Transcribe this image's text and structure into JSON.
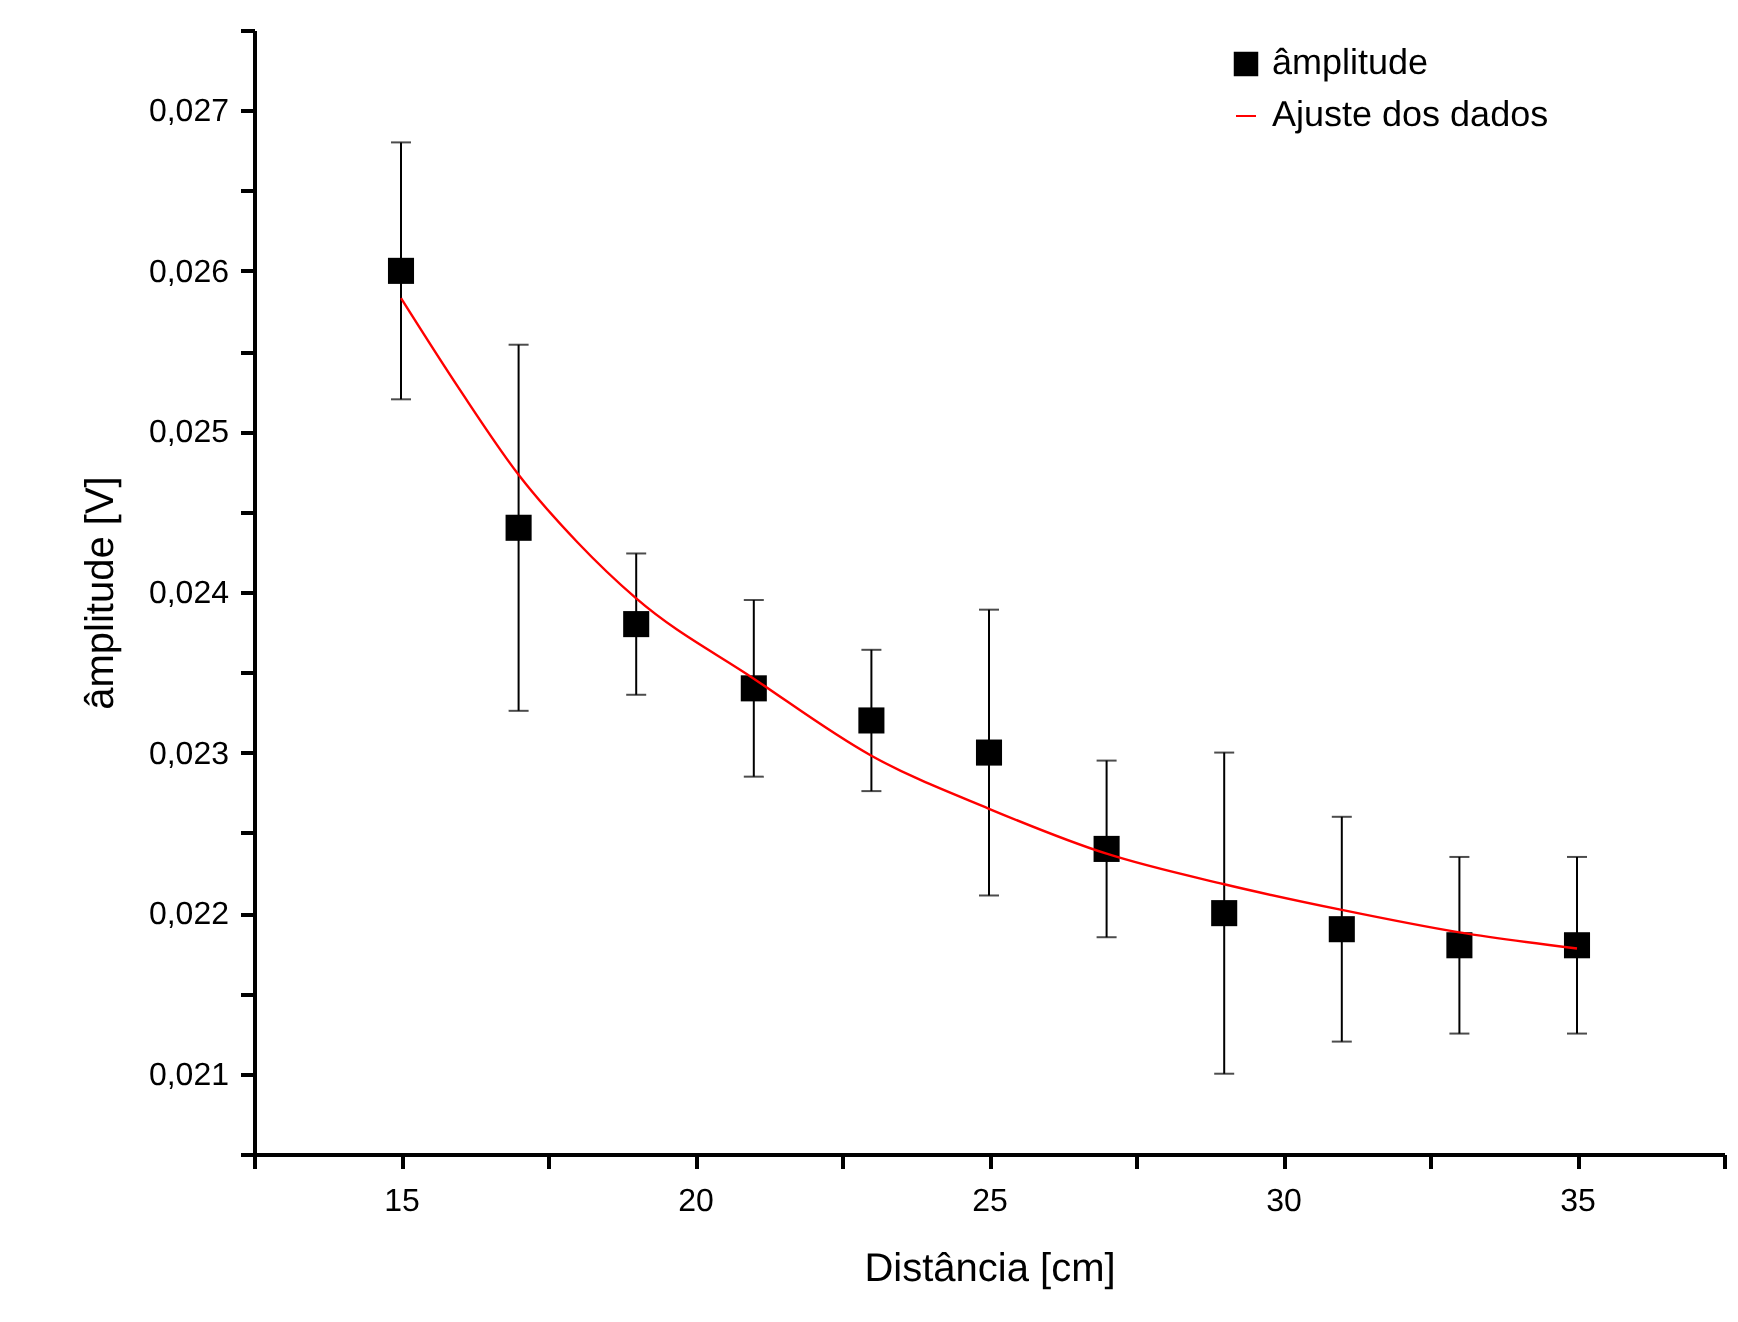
{
  "chart_data": {
    "type": "scatter",
    "xlabel": "Distância [cm]",
    "ylabel": "âmplitude [V]",
    "xlim": [
      12.5,
      37.5
    ],
    "xticks": [
      {
        "value": 12.5,
        "label": null
      },
      15,
      {
        "value": 17.5,
        "label": null
      },
      20,
      {
        "value": 22.5,
        "label": null
      },
      25,
      {
        "value": 27.5,
        "label": null
      },
      30,
      {
        "value": 32.5,
        "label": null
      },
      35,
      {
        "value": 37.5,
        "label": null
      }
    ],
    "ylim": [
      0.0205,
      0.0275
    ],
    "yticks": [
      {
        "value": 0.0205,
        "label": null
      },
      {
        "value": 0.021,
        "label": "0,021"
      },
      {
        "value": 0.0215,
        "label": null
      },
      {
        "value": 0.022,
        "label": "0,022"
      },
      {
        "value": 0.0225,
        "label": null
      },
      {
        "value": 0.023,
        "label": "0,023"
      },
      {
        "value": 0.0235,
        "label": null
      },
      {
        "value": 0.024,
        "label": "0,024"
      },
      {
        "value": 0.0245,
        "label": null
      },
      {
        "value": 0.025,
        "label": "0,025"
      },
      {
        "value": 0.0255,
        "label": null
      },
      {
        "value": 0.026,
        "label": "0,026"
      },
      {
        "value": 0.0265,
        "label": null
      },
      {
        "value": 0.027,
        "label": "0,027"
      },
      {
        "value": 0.0275,
        "label": null
      }
    ],
    "grid": false,
    "legend": "top right",
    "series": [
      {
        "name": "âmplitude",
        "marker": "square",
        "color": "#000000",
        "x": [
          15,
          17,
          19,
          21,
          23,
          25,
          27,
          29,
          31,
          33,
          35
        ],
        "values": [
          0.026,
          0.0244,
          0.0238,
          0.0234,
          0.0232,
          0.023,
          0.0224,
          0.022,
          0.0219,
          0.0218,
          0.0218
        ],
        "errors": [
          0.0008,
          0.00114,
          0.00044,
          0.00055,
          0.00044,
          0.00089,
          0.00055,
          0.001,
          0.0007,
          0.00055,
          0.00055
        ]
      },
      {
        "name": "Ajuste dos dados",
        "type": "line",
        "line_style": "solid",
        "marker": "none",
        "color": "#ff0000",
        "x": [
          15,
          16,
          17,
          18,
          19,
          21,
          23,
          25,
          27,
          29,
          31,
          33,
          35
        ],
        "values": [
          0.02583,
          0.02526,
          0.02473,
          0.02431,
          0.02396,
          0.02346,
          0.02298,
          0.02265,
          0.02237,
          0.02218,
          0.02202,
          0.02188,
          0.02178
        ]
      }
    ]
  }
}
